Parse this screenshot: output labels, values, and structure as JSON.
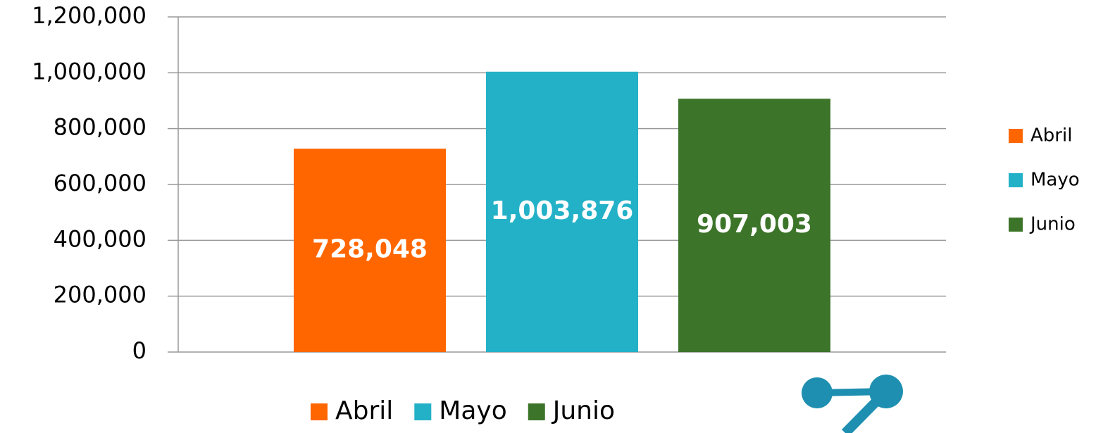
{
  "chart_data": {
    "type": "bar",
    "series": [
      {
        "name": "Abril",
        "color": "#ff6600",
        "values": [
          728048
        ],
        "value_labels": [
          "728,048"
        ]
      },
      {
        "name": "Mayo",
        "color": "#23b1c8",
        "values": [
          1003876
        ],
        "value_labels": [
          "1,003,876"
        ]
      },
      {
        "name": "Junio",
        "color": "#3c7429",
        "values": [
          907003
        ],
        "value_labels": [
          "907,003"
        ]
      }
    ],
    "ylim": [
      0,
      1200000
    ],
    "yticks": [
      0,
      {
        "value": 200000,
        "label": "200,000"
      },
      {
        "value": 400000,
        "label": "400,000"
      },
      {
        "value": 600000,
        "label": "600,000"
      },
      {
        "value": 800000,
        "label": "800,000"
      },
      {
        "value": 1000000,
        "label": "1,000,000"
      },
      {
        "value": 1200000,
        "label": "1,200,000"
      }
    ],
    "grid": true,
    "legend": [
      "right",
      "bottom"
    ]
  }
}
